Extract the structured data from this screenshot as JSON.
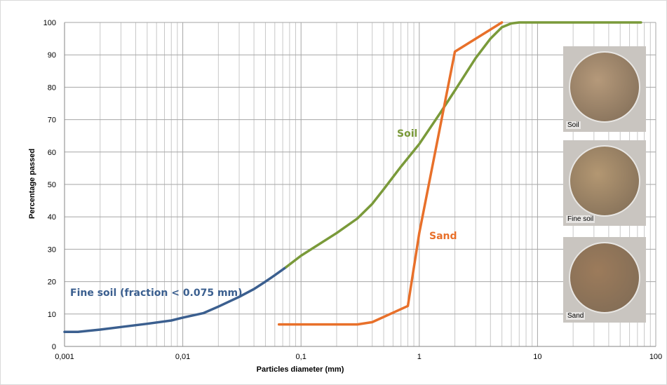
{
  "chart_data": {
    "type": "line",
    "title": "",
    "xlabel": "Particles diameter (mm)",
    "ylabel": "Percentage passed",
    "x_scale": "log",
    "xlim": [
      0.001,
      100
    ],
    "ylim": [
      0,
      100
    ],
    "grid": true,
    "x_ticks": [
      "0,001",
      "0,01",
      "0,1",
      "1",
      "10",
      "100"
    ],
    "y_ticks": [
      "0",
      "10",
      "20",
      "30",
      "40",
      "50",
      "60",
      "70",
      "80",
      "90",
      "100"
    ],
    "series": [
      {
        "name": "Fine soil (fraction < 0.075 mm)",
        "color": "#3b5f8f",
        "x": [
          0.001,
          0.0013,
          0.002,
          0.003,
          0.005,
          0.008,
          0.01,
          0.015,
          0.02,
          0.03,
          0.04,
          0.05,
          0.06,
          0.075
        ],
        "y": [
          4.5,
          4.5,
          5.2,
          6.0,
          7.0,
          8.0,
          8.9,
          10.3,
          12.3,
          15.3,
          17.7,
          20.0,
          22.0,
          24.5
        ]
      },
      {
        "name": "Soil",
        "color": "#7a9a3a",
        "x": [
          0.075,
          0.1,
          0.2,
          0.3,
          0.4,
          0.5,
          0.7,
          1.0,
          1.5,
          2.0,
          3.0,
          4.0,
          5.0,
          6.0,
          7.0,
          10.0,
          20.0,
          50.0,
          75.0
        ],
        "y": [
          24.5,
          28.0,
          35.0,
          39.5,
          44.0,
          48.5,
          55.5,
          62.5,
          72.0,
          79.0,
          89.0,
          95.0,
          98.5,
          99.7,
          100,
          100,
          100,
          100,
          100
        ]
      },
      {
        "name": "Sand",
        "color": "#e8702a",
        "x": [
          0.065,
          0.1,
          0.2,
          0.3,
          0.4,
          0.8,
          1.0,
          2.0,
          5.0
        ],
        "y": [
          6.8,
          6.8,
          6.8,
          6.8,
          7.5,
          12.5,
          35.0,
          91.0,
          100
        ]
      }
    ],
    "annotations": [
      "Soil",
      "Sand",
      "Fine soil (fraction < 0.075 mm)"
    ]
  },
  "photos": [
    {
      "caption": "Soil",
      "color": "#b5997a"
    },
    {
      "caption": "Fine soil",
      "color": "#b39772"
    },
    {
      "caption": "Sand",
      "color": "#9c7b5b"
    }
  ]
}
